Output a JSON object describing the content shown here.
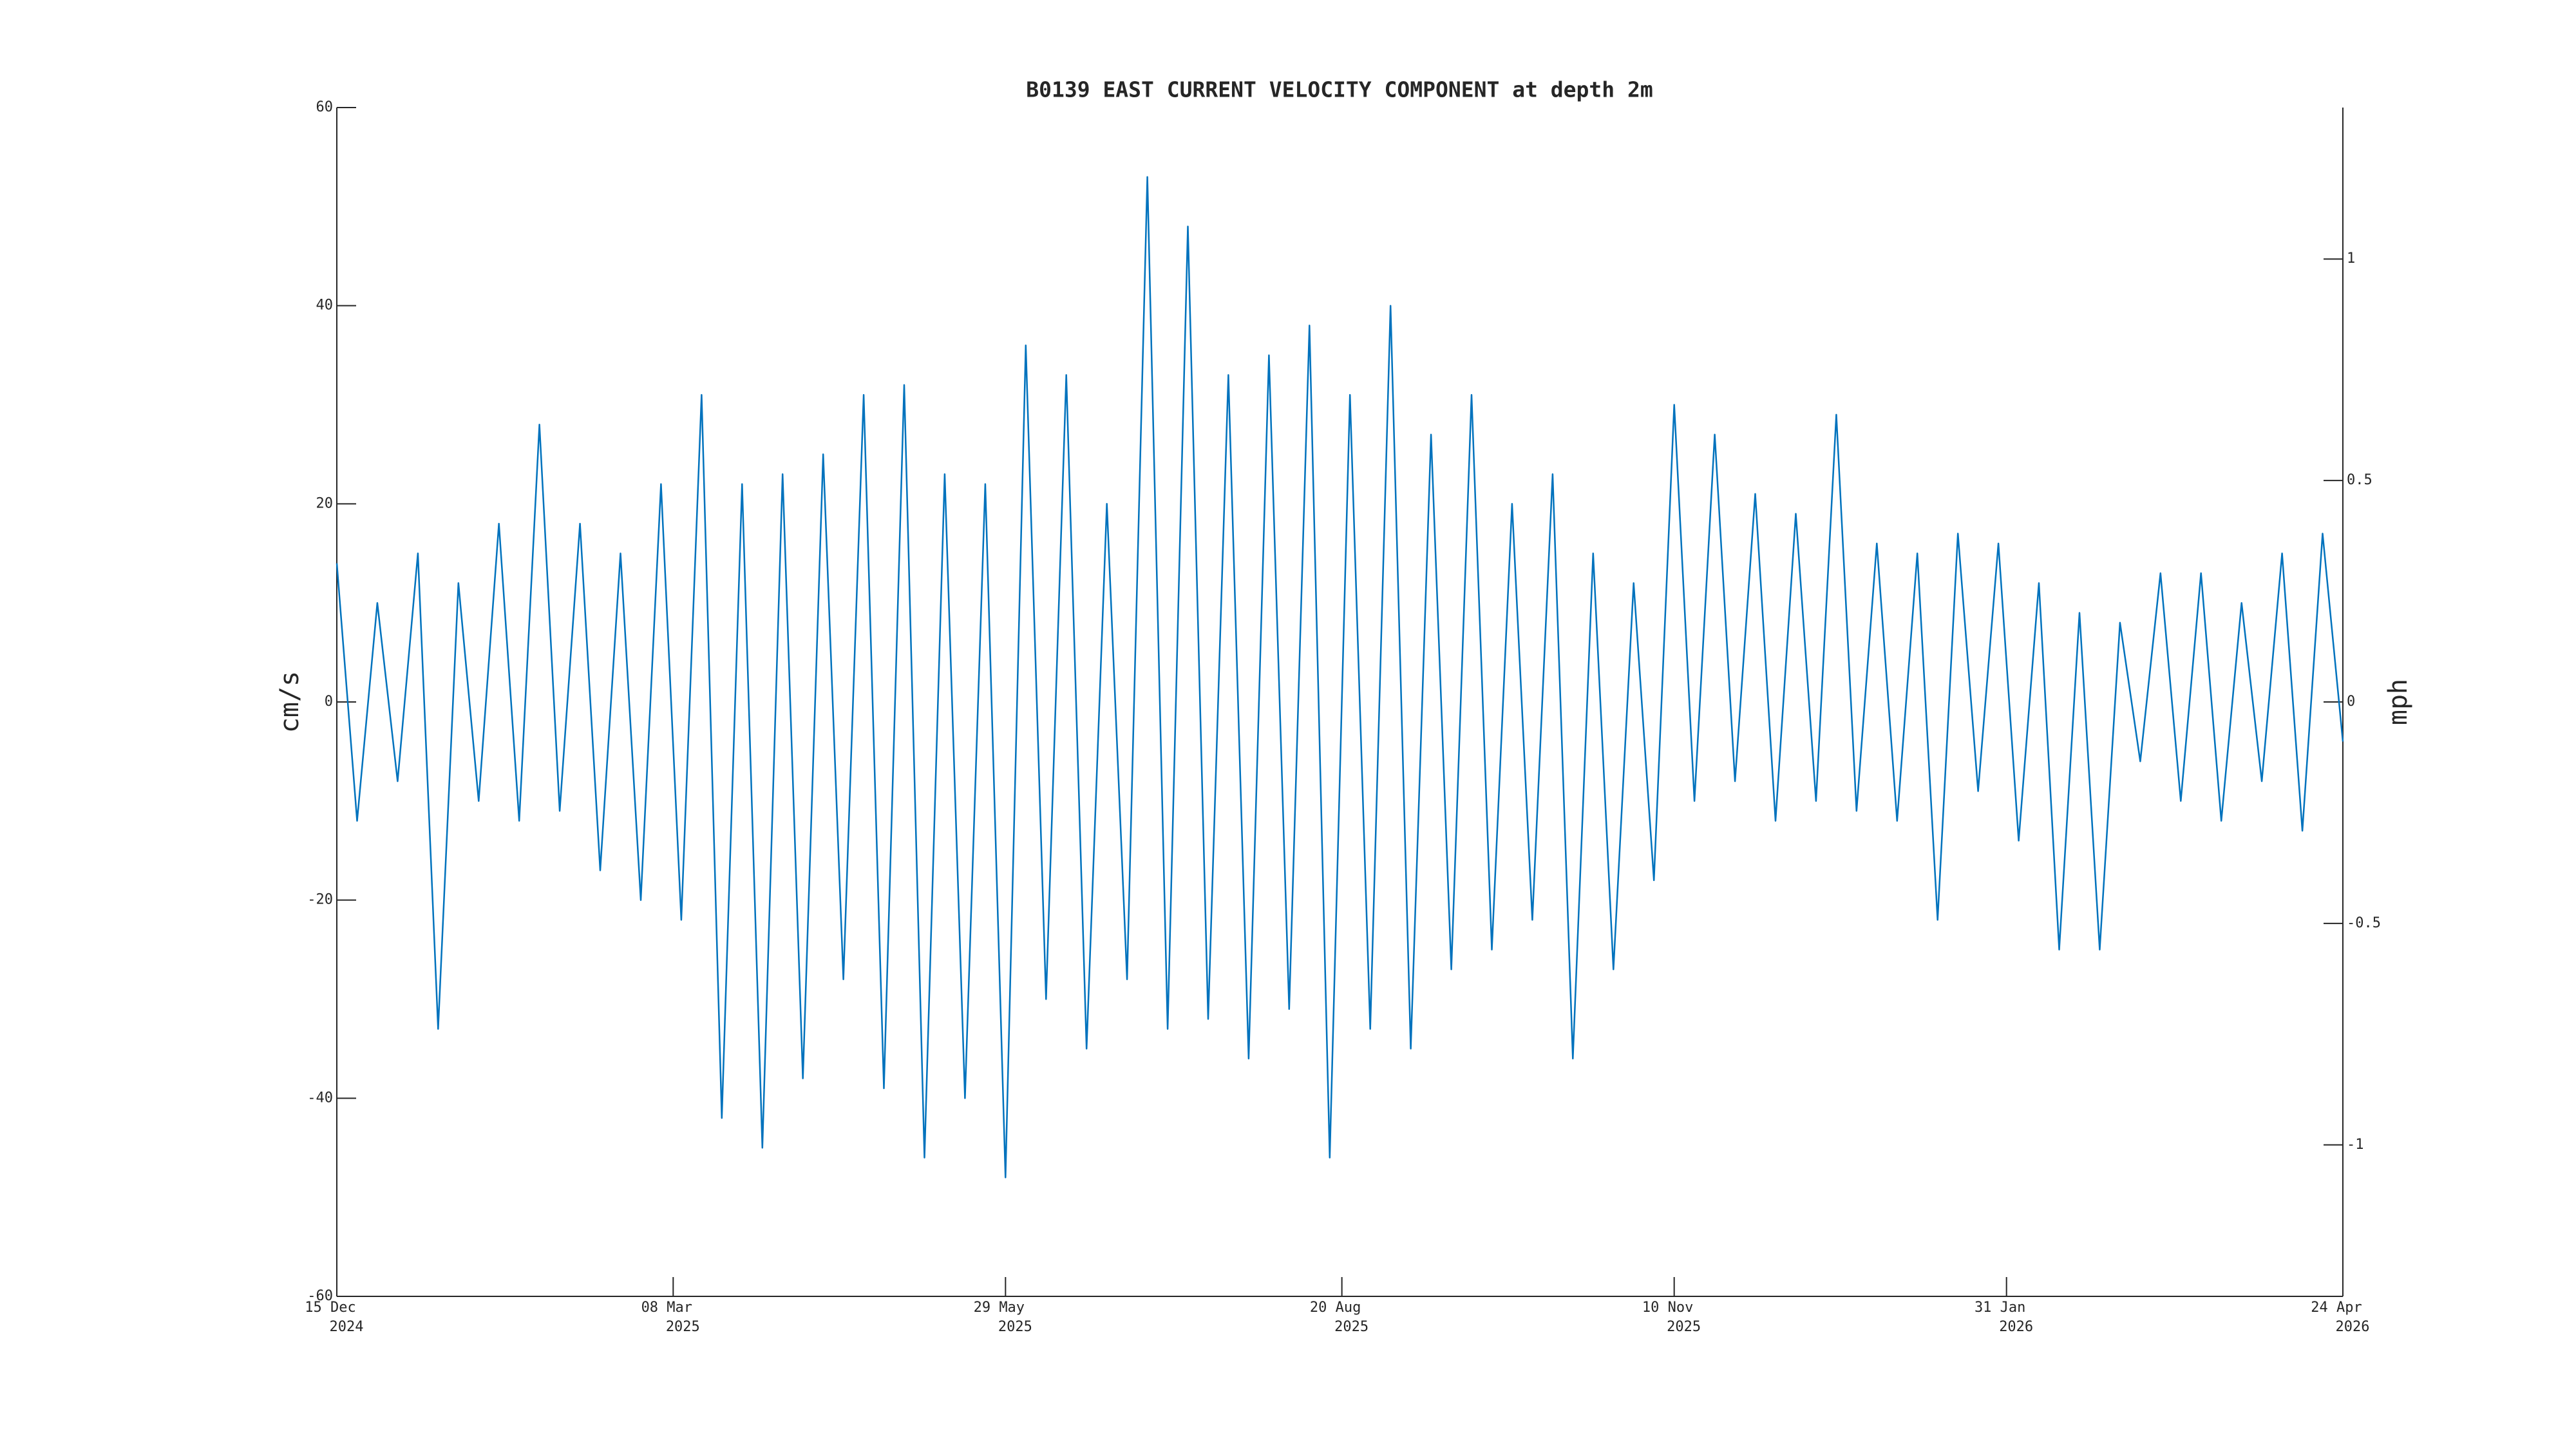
{
  "chart_data": {
    "type": "line",
    "title": "B0139 EAST CURRENT VELOCITY COMPONENT at depth 2m",
    "ylabel": "cm/s",
    "y2label": "mph",
    "color": "#0072bd",
    "x": [
      "2024-12-15",
      "2024-12-20",
      "2024-12-25",
      "2024-12-30",
      "2025-01-04",
      "2025-01-09",
      "2025-01-14",
      "2025-01-19",
      "2025-01-24",
      "2025-01-29",
      "2025-02-03",
      "2025-02-08",
      "2025-02-13",
      "2025-02-18",
      "2025-02-23",
      "2025-02-28",
      "2025-03-05",
      "2025-03-10",
      "2025-03-15",
      "2025-03-20",
      "2025-03-25",
      "2025-03-30",
      "2025-04-04",
      "2025-04-09",
      "2025-04-14",
      "2025-04-19",
      "2025-04-24",
      "2025-04-29",
      "2025-05-04",
      "2025-05-09",
      "2025-05-14",
      "2025-05-19",
      "2025-05-24",
      "2025-05-29",
      "2025-06-03",
      "2025-06-08",
      "2025-06-13",
      "2025-06-18",
      "2025-06-23",
      "2025-06-28",
      "2025-07-03",
      "2025-07-08",
      "2025-07-13",
      "2025-07-18",
      "2025-07-23",
      "2025-07-28",
      "2025-08-02",
      "2025-08-07",
      "2025-08-12",
      "2025-08-17",
      "2025-08-22",
      "2025-08-27",
      "2025-09-01",
      "2025-09-06",
      "2025-09-11",
      "2025-09-16",
      "2025-09-21",
      "2025-09-26",
      "2025-10-01",
      "2025-10-06",
      "2025-10-11",
      "2025-10-16",
      "2025-10-21",
      "2025-10-26",
      "2025-10-31",
      "2025-11-05",
      "2025-11-10",
      "2025-11-15",
      "2025-11-20",
      "2025-11-25",
      "2025-11-30",
      "2025-12-05",
      "2025-12-10",
      "2025-12-15",
      "2025-12-20",
      "2025-12-25",
      "2025-12-30",
      "2026-01-04",
      "2026-01-09",
      "2026-01-14",
      "2026-01-19",
      "2026-01-24",
      "2026-01-29",
      "2026-02-03",
      "2026-02-08",
      "2026-02-13",
      "2026-02-18",
      "2026-02-23",
      "2026-02-28",
      "2026-03-05",
      "2026-03-10",
      "2026-03-15",
      "2026-03-20",
      "2026-03-25",
      "2026-03-30",
      "2026-04-04",
      "2026-04-09",
      "2026-04-14",
      "2026-04-19",
      "2026-04-24"
    ],
    "values": [
      14,
      -12,
      10,
      -8,
      15,
      -33,
      12,
      -10,
      18,
      -12,
      28,
      -11,
      18,
      -17,
      15,
      -20,
      22,
      -22,
      31,
      -42,
      22,
      -45,
      23,
      -38,
      25,
      -28,
      31,
      -39,
      32,
      -46,
      23,
      -40,
      22,
      -48,
      36,
      -30,
      33,
      -35,
      20,
      -28,
      53,
      -33,
      48,
      -32,
      33,
      -36,
      35,
      -31,
      38,
      -46,
      31,
      -33,
      40,
      -35,
      27,
      -27,
      31,
      -25,
      20,
      -22,
      23,
      -36,
      15,
      -27,
      12,
      -18,
      30,
      -10,
      27,
      -8,
      21,
      -12,
      19,
      -10,
      29,
      -11,
      16,
      -12,
      15,
      -22,
      17,
      -9,
      16,
      -14,
      12,
      -25,
      9,
      -25,
      8,
      -6,
      13,
      -10,
      13,
      -12,
      10,
      -8,
      15,
      -13,
      17,
      -4
    ],
    "xlim": [
      "2024-12-15",
      "2026-04-24"
    ],
    "xticks": [
      {
        "value": "2024-12-15",
        "label": [
          "15 Dec",
          "2024"
        ]
      },
      {
        "value": "2025-03-08",
        "label": [
          "08 Mar",
          "2025"
        ]
      },
      {
        "value": "2025-05-29",
        "label": [
          "29 May",
          "2025"
        ]
      },
      {
        "value": "2025-08-20",
        "label": [
          "20 Aug",
          "2025"
        ]
      },
      {
        "value": "2025-11-10",
        "label": [
          "10 Nov",
          "2025"
        ]
      },
      {
        "value": "2026-01-31",
        "label": [
          "31 Jan",
          "2026"
        ]
      },
      {
        "value": "2026-04-24",
        "label": [
          "24 Apr",
          "2026"
        ]
      }
    ],
    "ylim": [
      -60,
      60
    ],
    "yticks": [
      -60,
      -40,
      -20,
      0,
      20,
      40,
      60
    ],
    "y2lim": [
      -1.342,
      1.342
    ],
    "y2ticks": [
      -1,
      -0.5,
      0,
      0.5,
      1
    ]
  }
}
